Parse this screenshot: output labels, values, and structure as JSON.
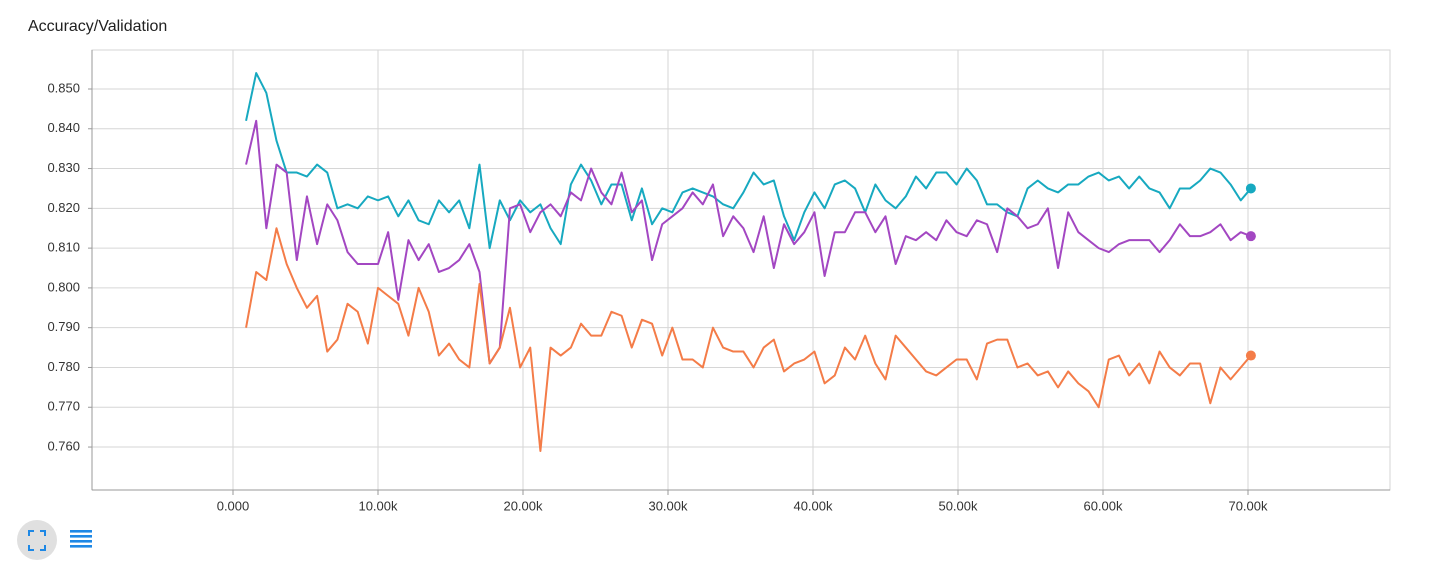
{
  "chart_data": {
    "type": "line",
    "title": "Accuracy/Validation",
    "x": [
      900,
      1600,
      2300,
      3000,
      3700,
      4400,
      5100,
      5800,
      6500,
      7200,
      7900,
      8600,
      9300,
      10000,
      10700,
      11400,
      12100,
      12800,
      13500,
      14200,
      14900,
      15600,
      16300,
      17000,
      17700,
      18400,
      19100,
      19800,
      20500,
      21200,
      21900,
      22600,
      23300,
      24000,
      24700,
      25400,
      26100,
      26800,
      27500,
      28200,
      28900,
      29600,
      30300,
      31000,
      31700,
      32400,
      33100,
      33800,
      34500,
      35200,
      35900,
      36600,
      37300,
      38000,
      38700,
      39400,
      40100,
      40800,
      41500,
      42200,
      42900,
      43600,
      44300,
      45000,
      45700,
      46400,
      47100,
      47800,
      48500,
      49200,
      49900,
      50600,
      51300,
      52000,
      52700,
      53400,
      54100,
      54800,
      55500,
      56200,
      56900,
      57600,
      58300,
      59000,
      59700,
      60400,
      61100,
      61800,
      62500,
      63200,
      63900,
      64600,
      65300,
      66000,
      66700,
      67400,
      68100,
      68800,
      69500,
      70200
    ],
    "series": [
      {
        "color": "#17a9c0",
        "values": [
          0.842,
          0.854,
          0.849,
          0.837,
          0.829,
          0.829,
          0.828,
          0.831,
          0.829,
          0.82,
          0.821,
          0.82,
          0.823,
          0.822,
          0.823,
          0.818,
          0.822,
          0.817,
          0.816,
          0.822,
          0.819,
          0.822,
          0.815,
          0.831,
          0.81,
          0.822,
          0.817,
          0.822,
          0.819,
          0.821,
          0.815,
          0.811,
          0.826,
          0.831,
          0.827,
          0.821,
          0.826,
          0.826,
          0.817,
          0.825,
          0.816,
          0.82,
          0.819,
          0.824,
          0.825,
          0.824,
          0.823,
          0.821,
          0.82,
          0.824,
          0.829,
          0.826,
          0.827,
          0.818,
          0.812,
          0.819,
          0.824,
          0.82,
          0.826,
          0.827,
          0.825,
          0.819,
          0.826,
          0.822,
          0.82,
          0.823,
          0.828,
          0.825,
          0.829,
          0.829,
          0.826,
          0.83,
          0.827,
          0.821,
          0.821,
          0.819,
          0.818,
          0.825,
          0.827,
          0.825,
          0.824,
          0.826,
          0.826,
          0.828,
          0.829,
          0.827,
          0.828,
          0.825,
          0.828,
          0.825,
          0.824,
          0.82,
          0.825,
          0.825,
          0.827,
          0.83,
          0.829,
          0.826,
          0.822,
          0.825
        ]
      },
      {
        "color": "#a347c2",
        "values": [
          0.831,
          0.842,
          0.815,
          0.831,
          0.829,
          0.807,
          0.823,
          0.811,
          0.821,
          0.817,
          0.809,
          0.806,
          0.806,
          0.806,
          0.814,
          0.797,
          0.812,
          0.807,
          0.811,
          0.804,
          0.805,
          0.807,
          0.811,
          0.804,
          0.781,
          0.785,
          0.82,
          0.821,
          0.814,
          0.819,
          0.821,
          0.818,
          0.824,
          0.822,
          0.83,
          0.824,
          0.821,
          0.829,
          0.819,
          0.822,
          0.807,
          0.816,
          0.818,
          0.82,
          0.824,
          0.821,
          0.826,
          0.813,
          0.818,
          0.815,
          0.809,
          0.818,
          0.805,
          0.816,
          0.811,
          0.814,
          0.819,
          0.803,
          0.814,
          0.814,
          0.819,
          0.819,
          0.814,
          0.818,
          0.806,
          0.813,
          0.812,
          0.814,
          0.812,
          0.817,
          0.814,
          0.813,
          0.817,
          0.816,
          0.809,
          0.82,
          0.818,
          0.815,
          0.816,
          0.82,
          0.805,
          0.819,
          0.814,
          0.812,
          0.81,
          0.809,
          0.811,
          0.812,
          0.812,
          0.812,
          0.809,
          0.812,
          0.816,
          0.813,
          0.813,
          0.814,
          0.816,
          0.812,
          0.814,
          0.813
        ]
      },
      {
        "color": "#f47c48",
        "values": [
          0.79,
          0.804,
          0.802,
          0.815,
          0.806,
          0.8,
          0.795,
          0.798,
          0.784,
          0.787,
          0.796,
          0.794,
          0.786,
          0.8,
          0.798,
          0.796,
          0.788,
          0.8,
          0.794,
          0.783,
          0.786,
          0.782,
          0.78,
          0.801,
          0.781,
          0.785,
          0.795,
          0.78,
          0.785,
          0.759,
          0.785,
          0.783,
          0.785,
          0.791,
          0.788,
          0.788,
          0.794,
          0.793,
          0.785,
          0.792,
          0.791,
          0.783,
          0.79,
          0.782,
          0.782,
          0.78,
          0.79,
          0.785,
          0.784,
          0.784,
          0.78,
          0.785,
          0.787,
          0.779,
          0.781,
          0.782,
          0.784,
          0.776,
          0.778,
          0.785,
          0.782,
          0.788,
          0.781,
          0.777,
          0.788,
          0.785,
          0.782,
          0.779,
          0.778,
          0.78,
          0.782,
          0.782,
          0.777,
          0.786,
          0.787,
          0.787,
          0.78,
          0.781,
          0.778,
          0.779,
          0.775,
          0.779,
          0.776,
          0.774,
          0.77,
          0.782,
          0.783,
          0.778,
          0.781,
          0.776,
          0.784,
          0.78,
          0.778,
          0.781,
          0.781,
          0.771,
          0.78,
          0.777,
          0.78,
          0.783
        ]
      }
    ],
    "xlim": [
      -9724,
      79793
    ],
    "ylim": [
      0.7492,
      0.8598
    ],
    "xticks": [
      {
        "value": 0,
        "label": "0.000"
      },
      {
        "value": 10000,
        "label": "10.00k"
      },
      {
        "value": 20000,
        "label": "20.00k"
      },
      {
        "value": 30000,
        "label": "30.00k"
      },
      {
        "value": 40000,
        "label": "40.00k"
      },
      {
        "value": 50000,
        "label": "50.00k"
      },
      {
        "value": 60000,
        "label": "60.00k"
      },
      {
        "value": 70000,
        "label": "70.00k"
      }
    ],
    "yticks": [
      {
        "value": 0.76,
        "label": "0.760"
      },
      {
        "value": 0.77,
        "label": "0.770"
      },
      {
        "value": 0.78,
        "label": "0.780"
      },
      {
        "value": 0.79,
        "label": "0.790"
      },
      {
        "value": 0.8,
        "label": "0.800"
      },
      {
        "value": 0.81,
        "label": "0.810"
      },
      {
        "value": 0.82,
        "label": "0.820"
      },
      {
        "value": 0.83,
        "label": "0.830"
      },
      {
        "value": 0.84,
        "label": "0.840"
      },
      {
        "value": 0.85,
        "label": "0.850"
      }
    ],
    "grid": true
  }
}
